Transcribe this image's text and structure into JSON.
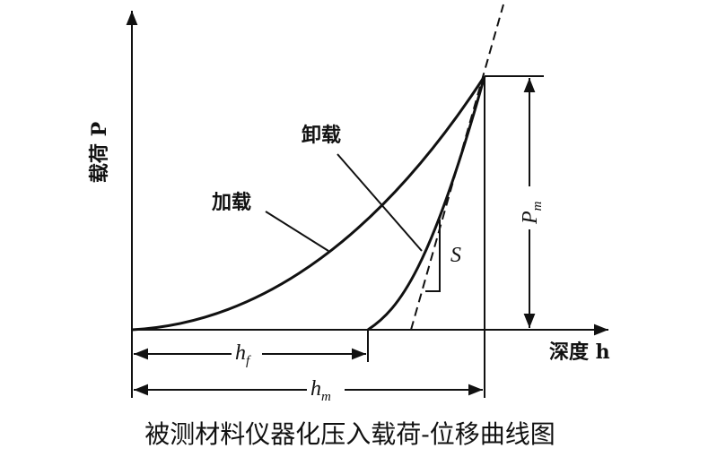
{
  "axes": {
    "y_label": "载荷 P",
    "x_label": "深度 h"
  },
  "curves": {
    "loading": "加载",
    "unloading": "卸载",
    "stiffness": "S"
  },
  "dimensions": {
    "Pm": {
      "symbol": "P",
      "subscript": "m"
    },
    "hf": {
      "symbol": "h",
      "subscript": "f"
    },
    "hm": {
      "symbol": "h",
      "subscript": "m"
    }
  },
  "caption": "被测材料仪器化压入载荷-位移曲线图"
}
